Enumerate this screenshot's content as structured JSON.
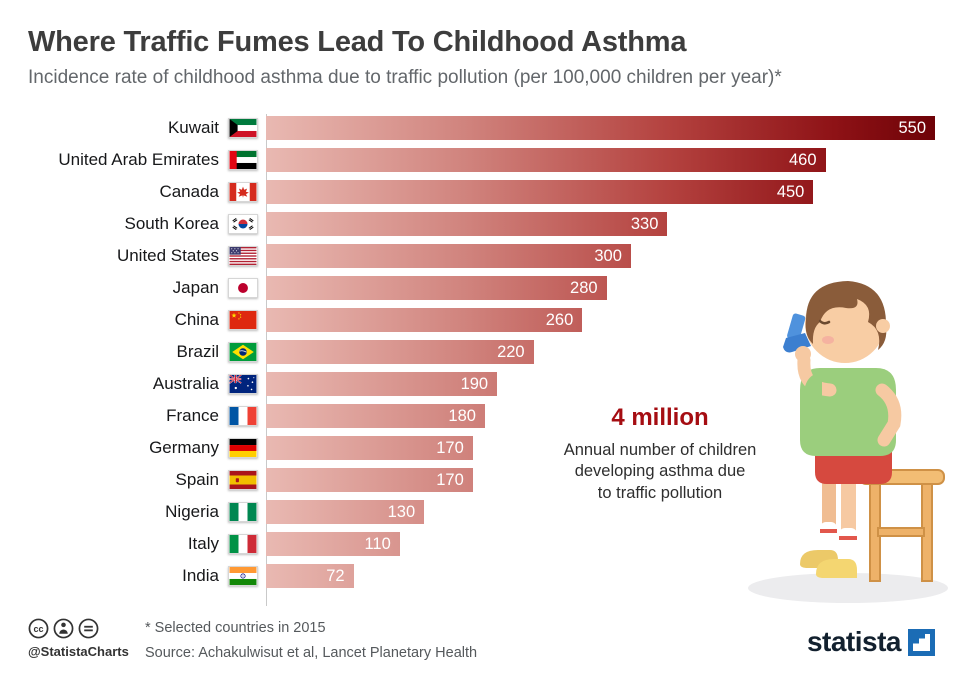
{
  "header": {
    "title": "Where Traffic Fumes Lead To Childhood Asthma",
    "subtitle": "Incidence rate of childhood asthma due to traffic pollution (per 100,000 children per year)*"
  },
  "chart_data": {
    "type": "bar",
    "orientation": "horizontal",
    "title": "Where Traffic Fumes Lead To Childhood Asthma",
    "subtitle": "Incidence rate of childhood asthma due to traffic pollution (per 100,000 children per year)*",
    "categories": [
      "Kuwait",
      "United Arab Emirates",
      "Canada",
      "South Korea",
      "United States",
      "Japan",
      "China",
      "Brazil",
      "Australia",
      "France",
      "Germany",
      "Spain",
      "Nigeria",
      "Italy",
      "India"
    ],
    "values": [
      550,
      460,
      450,
      330,
      300,
      280,
      260,
      220,
      190,
      180,
      170,
      170,
      130,
      110,
      72
    ],
    "flags": [
      "kuwait",
      "uae",
      "canada",
      "south-korea",
      "usa",
      "japan",
      "china",
      "brazil",
      "australia",
      "france",
      "germany",
      "spain",
      "nigeria",
      "italy",
      "india"
    ],
    "xlim": [
      0,
      550
    ],
    "value_labels": "inside-end",
    "grid": false,
    "legend": false,
    "bar_gradient": [
      "#e9b9b2",
      "#d0837d",
      "#b4423f",
      "#8e1216",
      "#6e0207"
    ]
  },
  "annotation": {
    "headline": "4 million",
    "lines": [
      "Annual number of children",
      "developing asthma due",
      "to traffic pollution"
    ]
  },
  "illustration": {
    "name": "boy-using-inhaler-illustration"
  },
  "footer": {
    "note": "* Selected countries in 2015",
    "source": "Source: Achakulwisut et al, Lancet Planetary Health",
    "handle": "@StatistaCharts",
    "license_icons": [
      "cc-icon",
      "attribution-icon",
      "no-derivatives-icon"
    ],
    "logo_text": "statista"
  },
  "colors": {
    "accent_red": "#a50d12",
    "title_gray": "#3d3d3d",
    "muted_gray": "#55595c",
    "statista_blue": "#1b6cb5"
  }
}
